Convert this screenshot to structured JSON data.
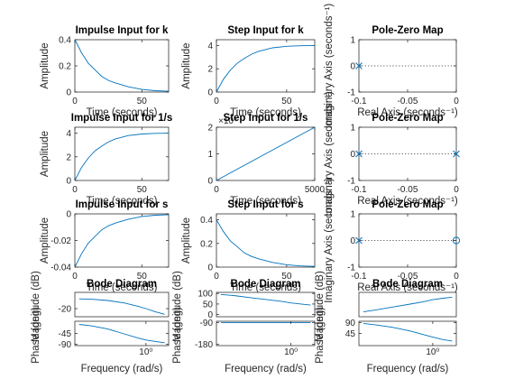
{
  "chart_data": [
    {
      "id": "p1",
      "type": "line",
      "title": "Impulse Input for k",
      "xlabel": "Time (seconds)",
      "ylabel": "Amplitude",
      "xlim": [
        0,
        70
      ],
      "ylim": [
        0,
        0.4
      ],
      "xticks": [
        0,
        50
      ],
      "yticks": [
        0,
        0.2,
        0.4
      ],
      "xticklabels": [
        "0",
        "50"
      ],
      "yticklabels": [
        "0",
        "0.2",
        "0.4"
      ],
      "series": [
        {
          "x": [
            0,
            5,
            10,
            15,
            20,
            25,
            30,
            40,
            50,
            60,
            70
          ],
          "y": [
            0.4,
            0.3,
            0.22,
            0.17,
            0.12,
            0.09,
            0.07,
            0.04,
            0.02,
            0.01,
            0.006
          ]
        }
      ]
    },
    {
      "id": "p2",
      "type": "line",
      "title": "Step Input for k",
      "xlabel": "Time (seconds)",
      "ylabel": "Amplitude",
      "xlim": [
        0,
        70
      ],
      "ylim": [
        0,
        4.5
      ],
      "xticks": [
        0,
        50
      ],
      "yticks": [
        0,
        2,
        4
      ],
      "xticklabels": [
        "0",
        "50"
      ],
      "yticklabels": [
        "0",
        "2",
        "4"
      ],
      "series": [
        {
          "x": [
            0,
            5,
            10,
            15,
            20,
            25,
            30,
            40,
            50,
            60,
            70
          ],
          "y": [
            0,
            1.1,
            1.9,
            2.5,
            2.9,
            3.25,
            3.5,
            3.8,
            3.93,
            3.98,
            4.0
          ]
        }
      ]
    },
    {
      "id": "p3",
      "type": "scatter",
      "title": "Pole-Zero Map",
      "xlabel": "Real Axis (seconds⁻¹)",
      "ylabel": "Imaginary Axis (seconds⁻¹)",
      "xlim": [
        -0.1,
        0
      ],
      "ylim": [
        -1,
        1
      ],
      "xticks": [
        -0.1,
        -0.05,
        0
      ],
      "yticks": [
        -1,
        0,
        1
      ],
      "xticklabels": [
        "-0.1",
        "-0.05",
        "0"
      ],
      "yticklabels": [
        "-1",
        "0",
        "1"
      ],
      "poles": [
        [
          -0.1,
          0
        ]
      ],
      "zeros": []
    },
    {
      "id": "p4",
      "type": "line",
      "title": "Impulse Input for 1/s",
      "xlabel": "Time (seconds)",
      "ylabel": "Amplitude",
      "xlim": [
        0,
        70
      ],
      "ylim": [
        0,
        4.5
      ],
      "xticks": [
        0,
        50
      ],
      "yticks": [
        0,
        2,
        4
      ],
      "xticklabels": [
        "0",
        "50"
      ],
      "yticklabels": [
        "0",
        "2",
        "4"
      ],
      "series": [
        {
          "x": [
            0,
            5,
            10,
            15,
            20,
            25,
            30,
            40,
            50,
            60,
            70
          ],
          "y": [
            0,
            1.1,
            1.9,
            2.5,
            2.9,
            3.25,
            3.5,
            3.8,
            3.93,
            3.98,
            4.0
          ]
        }
      ]
    },
    {
      "id": "p5",
      "type": "line",
      "title": "Step Input for 1/s",
      "xlabel": "Time (seconds)",
      "ylabel": "",
      "exponent": "×10⁴",
      "xlim": [
        0,
        5000
      ],
      "ylim": [
        0,
        2
      ],
      "xticks": [
        0,
        5000
      ],
      "yticks": [
        0,
        1,
        2
      ],
      "xticklabels": [
        "0",
        "5000"
      ],
      "yticklabels": [
        "0",
        "1",
        "2"
      ],
      "series": [
        {
          "x": [
            0,
            5000
          ],
          "y": [
            0,
            2
          ]
        }
      ]
    },
    {
      "id": "p6",
      "type": "scatter",
      "title": "Pole-Zero Map",
      "xlabel": "Real Axis (seconds⁻¹)",
      "ylabel": "Imaginary Axis (seconds⁻¹)",
      "xlim": [
        -0.1,
        0
      ],
      "ylim": [
        -1,
        1
      ],
      "xticks": [
        -0.1,
        -0.05,
        0
      ],
      "yticks": [
        -1,
        0,
        1
      ],
      "xticklabels": [
        "-0.1",
        "-0.05",
        "0"
      ],
      "yticklabels": [
        "-1",
        "0",
        "1"
      ],
      "poles": [
        [
          -0.1,
          0
        ],
        [
          0,
          0
        ]
      ],
      "zeros": []
    },
    {
      "id": "p7",
      "type": "line",
      "title": "Impulse Input for s",
      "xlabel": "Time (seconds)",
      "ylabel": "Amplitude",
      "xlim": [
        0,
        70
      ],
      "ylim": [
        -0.04,
        0
      ],
      "xticks": [
        0,
        50
      ],
      "yticks": [
        -0.04,
        -0.02,
        0
      ],
      "xticklabels": [
        "0",
        "50"
      ],
      "yticklabels": [
        "-0.04",
        "-0.02",
        "0"
      ],
      "series": [
        {
          "x": [
            0,
            5,
            10,
            15,
            20,
            25,
            30,
            40,
            50,
            60,
            70
          ],
          "y": [
            -0.04,
            -0.03,
            -0.022,
            -0.017,
            -0.012,
            -0.009,
            -0.007,
            -0.004,
            -0.002,
            -0.001,
            -0.0006
          ]
        }
      ]
    },
    {
      "id": "p8",
      "type": "line",
      "title": "Step Input for s",
      "xlabel": "Time (seconds)",
      "ylabel": "Amplitude",
      "xlim": [
        0,
        70
      ],
      "ylim": [
        0,
        0.45
      ],
      "xticks": [
        0,
        50
      ],
      "yticks": [
        0,
        0.2,
        0.4
      ],
      "xticklabels": [
        "0",
        "50"
      ],
      "yticklabels": [
        "0",
        "0.2",
        "0.4"
      ],
      "series": [
        {
          "x": [
            0,
            5,
            10,
            15,
            20,
            25,
            30,
            40,
            50,
            60,
            70
          ],
          "y": [
            0.4,
            0.3,
            0.22,
            0.17,
            0.12,
            0.09,
            0.07,
            0.04,
            0.02,
            0.01,
            0.006
          ]
        }
      ]
    },
    {
      "id": "p9",
      "type": "scatter",
      "title": "Pole-Zero Map",
      "xlabel": "Real Axis (seconds⁻¹)",
      "ylabel": "Imaginary Axis (seconds⁻¹)",
      "xlim": [
        -0.1,
        0
      ],
      "ylim": [
        -1,
        1
      ],
      "xticks": [
        -0.1,
        -0.05,
        0
      ],
      "yticks": [
        -1,
        0,
        1
      ],
      "xticklabels": [
        "-0.1",
        "-0.05",
        "0"
      ],
      "yticklabels": [
        "-1",
        "0",
        "1"
      ],
      "poles": [
        [
          -0.1,
          0
        ]
      ],
      "zeros": [
        [
          0,
          0
        ]
      ]
    },
    {
      "id": "b1",
      "type": "line",
      "xscale": "log",
      "title": "Bode Diagram",
      "xlabel": "Frequency  (rad/s)",
      "mag": {
        "ylabel": "Magnitude (dB)",
        "ylim": [
          -30,
          0
        ],
        "yticks": [
          -20
        ],
        "yticklabels": [
          "-20"
        ],
        "x": [
          0.06,
          0.1,
          0.2,
          0.4,
          0.7,
          1,
          1.5,
          2.2
        ],
        "y": [
          -8,
          -8.5,
          -10,
          -13,
          -17,
          -20,
          -24,
          -27
        ]
      },
      "phase": {
        "ylabel": "Phase (deg)",
        "ylim": [
          -95,
          5
        ],
        "yticks": [
          -45,
          -90
        ],
        "yticklabels": [
          "-45",
          "-90"
        ],
        "x": [
          0.06,
          0.1,
          0.2,
          0.4,
          0.7,
          1,
          1.5,
          2.2
        ],
        "y": [
          -8,
          -14,
          -27,
          -47,
          -63,
          -72,
          -78,
          -83
        ]
      },
      "xticks": [
        1
      ],
      "xticklabels": [
        "10⁰"
      ]
    },
    {
      "id": "b2",
      "type": "line",
      "xscale": "log",
      "title": "Bode Diagram",
      "xlabel": "Frequency  (rad/s)",
      "mag": {
        "ylabel": "Magnitude (dB)",
        "ylim": [
          -10,
          105
        ],
        "yticks": [
          100,
          50,
          0
        ],
        "yticklabels": [
          "100",
          "50",
          "0"
        ],
        "x": [
          0.06,
          0.1,
          0.2,
          0.4,
          0.7,
          1,
          1.5,
          2.2
        ],
        "y": [
          95,
          90,
          80,
          70,
          62,
          55,
          50,
          45
        ]
      },
      "phase": {
        "ylabel": "Phase (deg)",
        "ylim": [
          -185,
          -85
        ],
        "yticks": [
          -90,
          -180
        ],
        "yticklabels": [
          "-90",
          "-180"
        ],
        "x": [
          0.06,
          0.1,
          0.2,
          0.4,
          0.7,
          1,
          1.5,
          2.2
        ],
        "y": [
          -90,
          -90,
          -90,
          -90,
          -90,
          -90,
          -90,
          -90
        ]
      },
      "xticks": [
        1
      ],
      "xticklabels": [
        "10⁰"
      ]
    },
    {
      "id": "b3",
      "type": "line",
      "xscale": "log",
      "title": "Bode Diagram",
      "xlabel": "Frequency  (rad/s)",
      "mag": {
        "ylabel": "Magnitude (dB)",
        "ylim": [
          -50,
          0
        ],
        "yticks": [],
        "yticklabels": [],
        "x": [
          0.06,
          0.1,
          0.2,
          0.4,
          0.7,
          1,
          1.5,
          2.2
        ],
        "y": [
          -40,
          -36,
          -30,
          -24,
          -19,
          -15,
          -12,
          -10
        ]
      },
      "phase": {
        "ylabel": "Phase (deg)",
        "ylim": [
          -5,
          95
        ],
        "yticks": [
          90,
          45
        ],
        "yticklabels": [
          "90",
          "45"
        ],
        "x": [
          0.06,
          0.1,
          0.2,
          0.4,
          0.7,
          1,
          1.5,
          2.2
        ],
        "y": [
          86,
          80,
          70,
          55,
          40,
          30,
          20,
          14
        ]
      },
      "xticks": [
        1
      ],
      "xticklabels": [
        "10⁰"
      ]
    }
  ]
}
